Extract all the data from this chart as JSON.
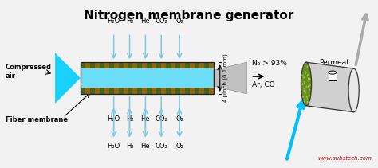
{
  "title": "Nitrogen membrane generator",
  "title_fontsize": 11,
  "title_fontweight": "bold",
  "bg_color": "#f2f2f2",
  "top_labels": [
    "H₂O",
    "H₂",
    "He",
    "CO₂",
    "O₂"
  ],
  "bottom_labels": [
    "H₂O",
    "H₂",
    "He",
    "CO₂",
    "O₂"
  ],
  "n2_label": "N₂ > 93%",
  "ar_co_label": "Ar, CO",
  "compressed_label": "Compressed\nair",
  "fiber_label": "Fiber membrane",
  "size_label": "4 μinch (0.1 mm)",
  "permeat_label": "Permeat",
  "website": "www.substech.com",
  "cyan_fill": "#00CFFF",
  "membrane_brown": "#8B6810",
  "membrane_dark_green": "#4A6020",
  "membrane_light_green": "#7A9030",
  "arrow_blue": "#7EC8E3",
  "gray_funnel": "#B8B8B8",
  "cylinder_body": "#D0D0D0",
  "cylinder_light": "#E8E8E8",
  "fiber_face_bg": "#6B8E23",
  "fiber_dot_color": "#9ACD32",
  "blue_arrow": "#00BFFF",
  "output_arrow_gray": "#AAAAAA",
  "website_color": "#CC0000"
}
